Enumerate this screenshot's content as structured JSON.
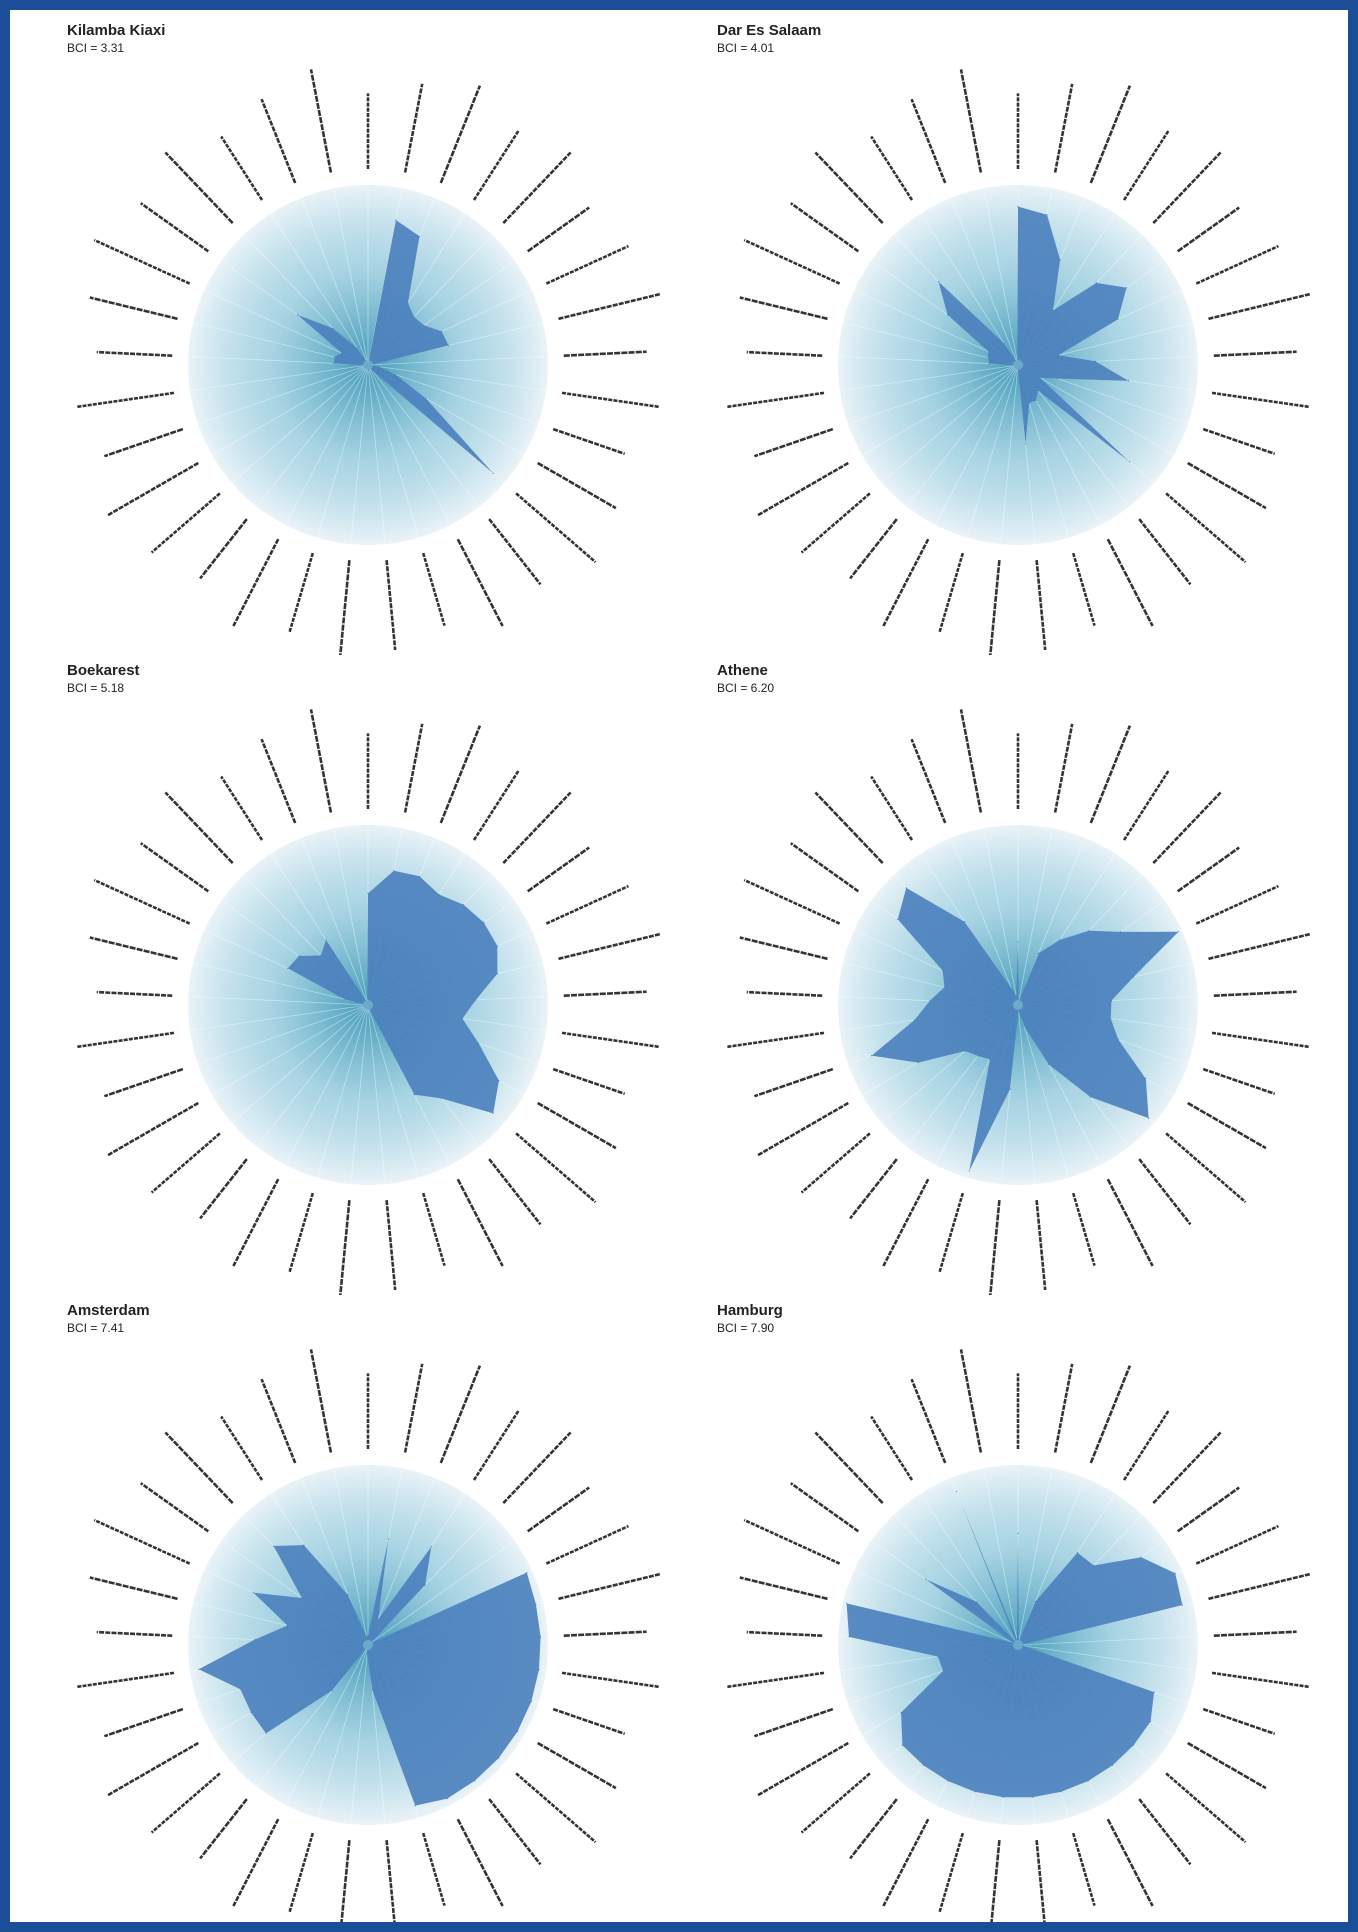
{
  "colors": {
    "frame": "#1a4f98",
    "shape_fill": "#4a80bd",
    "disc_center": "#3a96b6",
    "disc_edge": "#eaf3f8",
    "label_color": "#333333"
  },
  "chart_data": [
    {
      "type": "radar",
      "title": "Kilamba Kiaxi",
      "subtitle": "BCI = 3.31",
      "max_value": 10,
      "values": [
        0,
        8.2,
        7.7,
        4.1,
        3.7,
        3.8,
        4.5,
        4.6,
        0.2,
        0.6,
        1.6,
        3.7,
        9.2,
        0.4,
        0.2,
        0.2,
        0.3,
        0.2,
        0.2,
        0.2,
        0.2,
        0.2,
        0.2,
        0.2,
        0.2,
        1.9,
        1.9,
        1.6,
        4.8,
        2.8,
        1.1,
        0.2,
        0.2
      ]
    },
    {
      "type": "radar",
      "title": "Dar Es Salaam",
      "subtitle": "BCI = 4.01",
      "max_value": 10,
      "values": [
        8.8,
        8.5,
        6.3,
        3.6,
        6.3,
        7.4,
        6.1,
        2.3,
        4.3,
        6.2,
        2.3,
        1.4,
        8.2,
        1.8,
        2.2,
        2.2,
        4.4,
        0.2,
        0.2,
        0.2,
        0.2,
        0.2,
        0.2,
        0.2,
        0.2,
        1.6,
        1.7,
        1.8,
        4.8,
        6.4,
        1.4,
        0.2,
        0.2
      ]
    },
    {
      "type": "radar",
      "title": "Boekarest",
      "subtitle": "BCI = 5.18",
      "max_value": 10,
      "values": [
        6.2,
        7.6,
        7.7,
        7.3,
        7.7,
        7.9,
        7.9,
        7.4,
        6.0,
        5.3,
        6.5,
        8.4,
        9.2,
        6.6,
        5.6,
        0.2,
        0.2,
        0.2,
        0.2,
        0.2,
        0.2,
        0.2,
        0.2,
        0.2,
        0.2,
        0.2,
        1.3,
        4.9,
        4.7,
        3.8,
        4.3,
        0.2,
        0.2
      ]
    },
    {
      "type": "radar",
      "title": "Athene",
      "subtitle": "BCI = 6.20",
      "max_value": 10,
      "values": [
        3.5,
        0.2,
        3.1,
        4.3,
        5.7,
        7.0,
        9.8,
        6.6,
        5.2,
        5.2,
        5.9,
        8.2,
        9.6,
        6.5,
        3.7,
        1.2,
        0.3,
        4.7,
        9.6,
        3.4,
        3.6,
        3.9,
        6.4,
        8.6,
        5.8,
        4.9,
        4.2,
        4.6,
        8.2,
        9.0,
        5.5,
        1.0,
        0.5
      ]
    },
    {
      "type": "radar",
      "title": "Amsterdam",
      "subtitle": "BCI = 7.41",
      "max_value": 10,
      "values": [
        0.5,
        6.0,
        1.5,
        6.5,
        4.6,
        0.2,
        9.7,
        9.6,
        9.6,
        9.6,
        9.6,
        9.6,
        9.6,
        9.6,
        9.6,
        9.3,
        2.5,
        0.5,
        0.2,
        0.2,
        3.2,
        7.5,
        7.5,
        7.5,
        9.5,
        6.3,
        4.6,
        7.0,
        4.5,
        7.6,
        6.6,
        3.0,
        0.5
      ]
    },
    {
      "type": "radar",
      "title": "Hamburg",
      "subtitle": "BCI = 7.90",
      "max_value": 10,
      "values": [
        6.2,
        0.2,
        2.6,
        6.1,
        6.1,
        8.4,
        9.6,
        9.4,
        0.2,
        0.3,
        8.0,
        8.5,
        8.5,
        8.5,
        8.5,
        8.5,
        8.5,
        8.5,
        8.5,
        8.5,
        8.5,
        8.5,
        7.5,
        4.4,
        4.5,
        9.4,
        9.8,
        0.3,
        6.3,
        3.3,
        0.2,
        9.2,
        0.3
      ]
    }
  ]
}
